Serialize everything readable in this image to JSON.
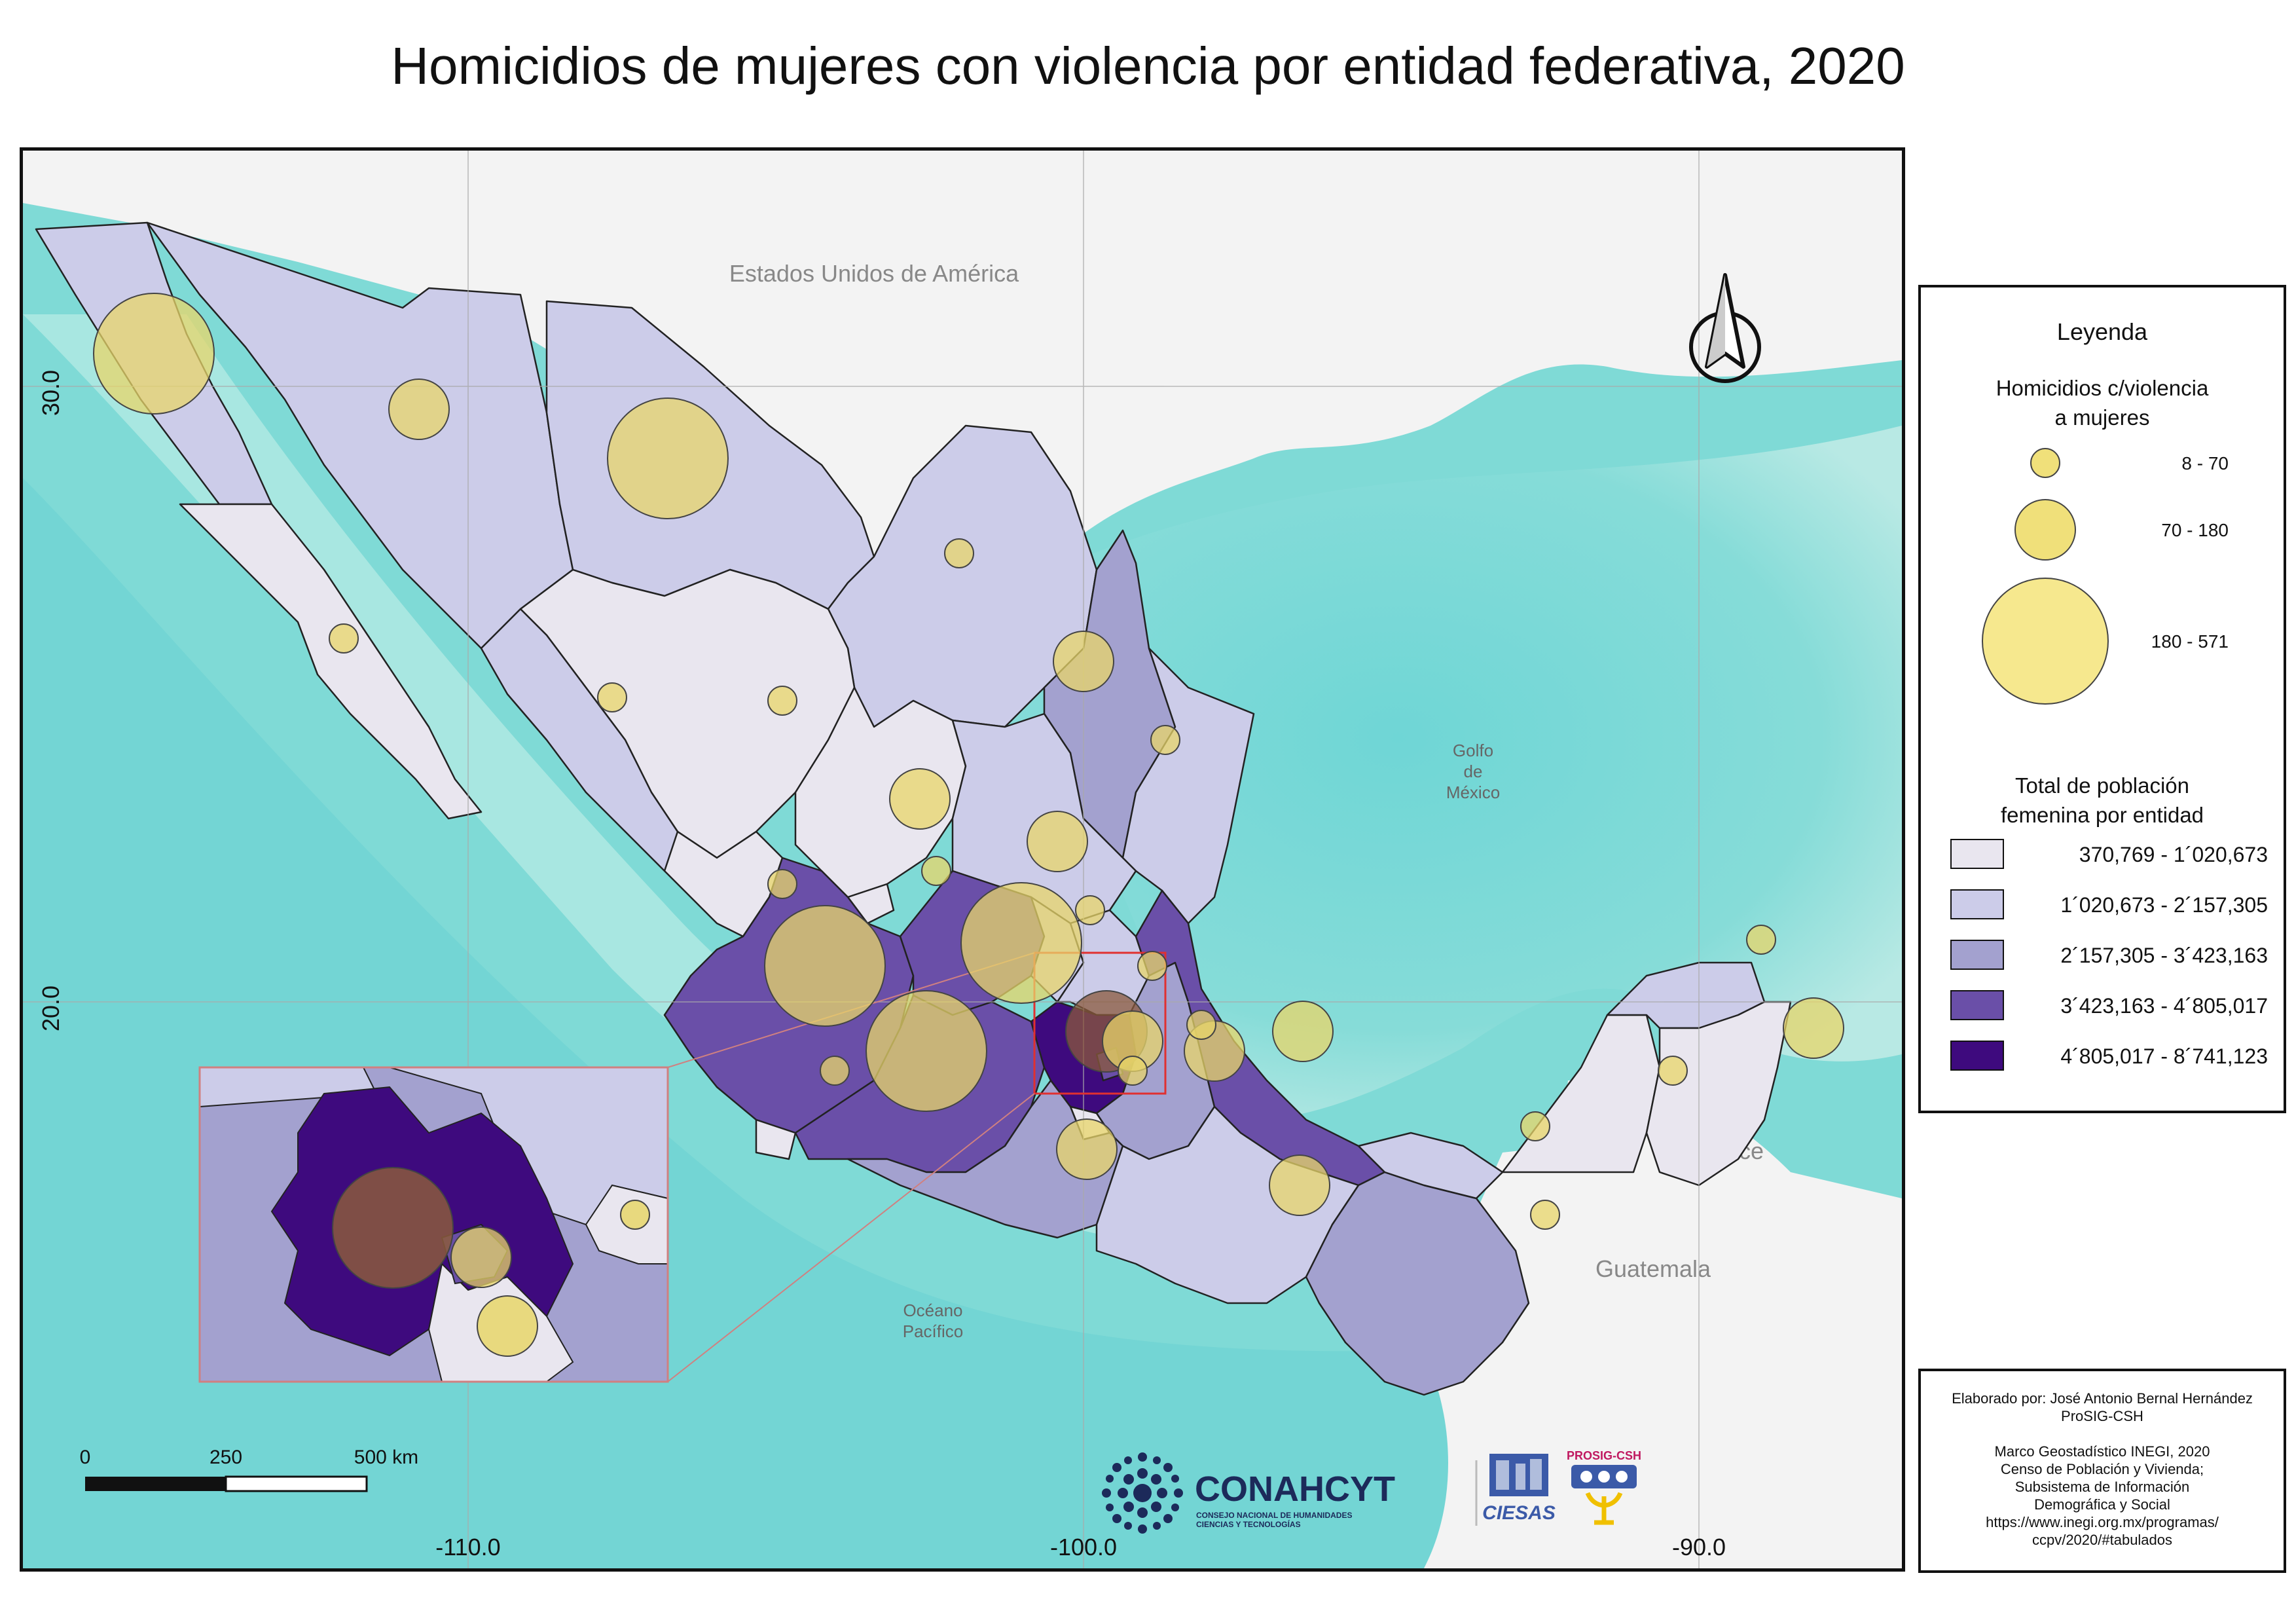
{
  "title": "Homicidios de mujeres con violencia por entidad federativa, 2020",
  "map": {
    "labels": {
      "usa": "Estados Unidos de América",
      "gulf": [
        "Golfo",
        "de",
        "México"
      ],
      "pacific": [
        "Océano",
        "Pacífico"
      ],
      "belize": "Belice",
      "guatemala": "Guatemala"
    },
    "graticule": {
      "lat_labels": [
        "30.0",
        "20.0"
      ],
      "lon_labels": [
        "-110.0",
        "-100.0",
        "-90.0"
      ]
    },
    "scale_bar": {
      "labels": [
        "0",
        "250",
        "500 km"
      ]
    },
    "north_arrow_icon": "north-arrow-icon",
    "colors": {
      "sea_deep": "#6fd6d6",
      "sea_light": "#a8e6e2",
      "land_foreign": "#f2f2f2",
      "class_1": "#e9e6ef",
      "class_2": "#cccce9",
      "class_3": "#a3a1cf",
      "class_4": "#6a4fa8",
      "class_5": "#3e0a7e",
      "bubble": "#e8d66a"
    }
  },
  "legend": {
    "title": "Leyenda",
    "bubbles_title": [
      "Homicidios c/violencia",
      "a mujeres"
    ],
    "bubble_classes": [
      "8 - 70",
      "70 - 180",
      "180 - 571"
    ],
    "population_title": [
      "Total de población",
      "femenina por entidad"
    ],
    "population_classes": [
      "370,769 - 1´020,673",
      "1´020,673 - 2´157,305",
      "2´157,305 - 3´423,163",
      "3´423,163 - 4´805,017",
      "4´805,017 - 8´741,123"
    ]
  },
  "logos": {
    "conahcyt": "CONAHCYT",
    "conahcyt_sub": [
      "CONSEJO NACIONAL DE HUMANIDADES",
      "CIENCIAS Y TECNOLOGÍAS"
    ],
    "ciesas": "CIESAS",
    "prosig": "PROSIG-CSH"
  },
  "credits": [
    "Elaborado por: José Antonio Bernal Hernández",
    "ProSIG-CSH",
    "",
    "Marco Geostadístico INEGI, 2020",
    "Censo de Población y Vivienda;",
    "Subsistema de Información",
    "Demográfica y Social",
    "https://www.inegi.org.mx/programas/",
    "ccpv/2020/#tabulados"
  ]
}
